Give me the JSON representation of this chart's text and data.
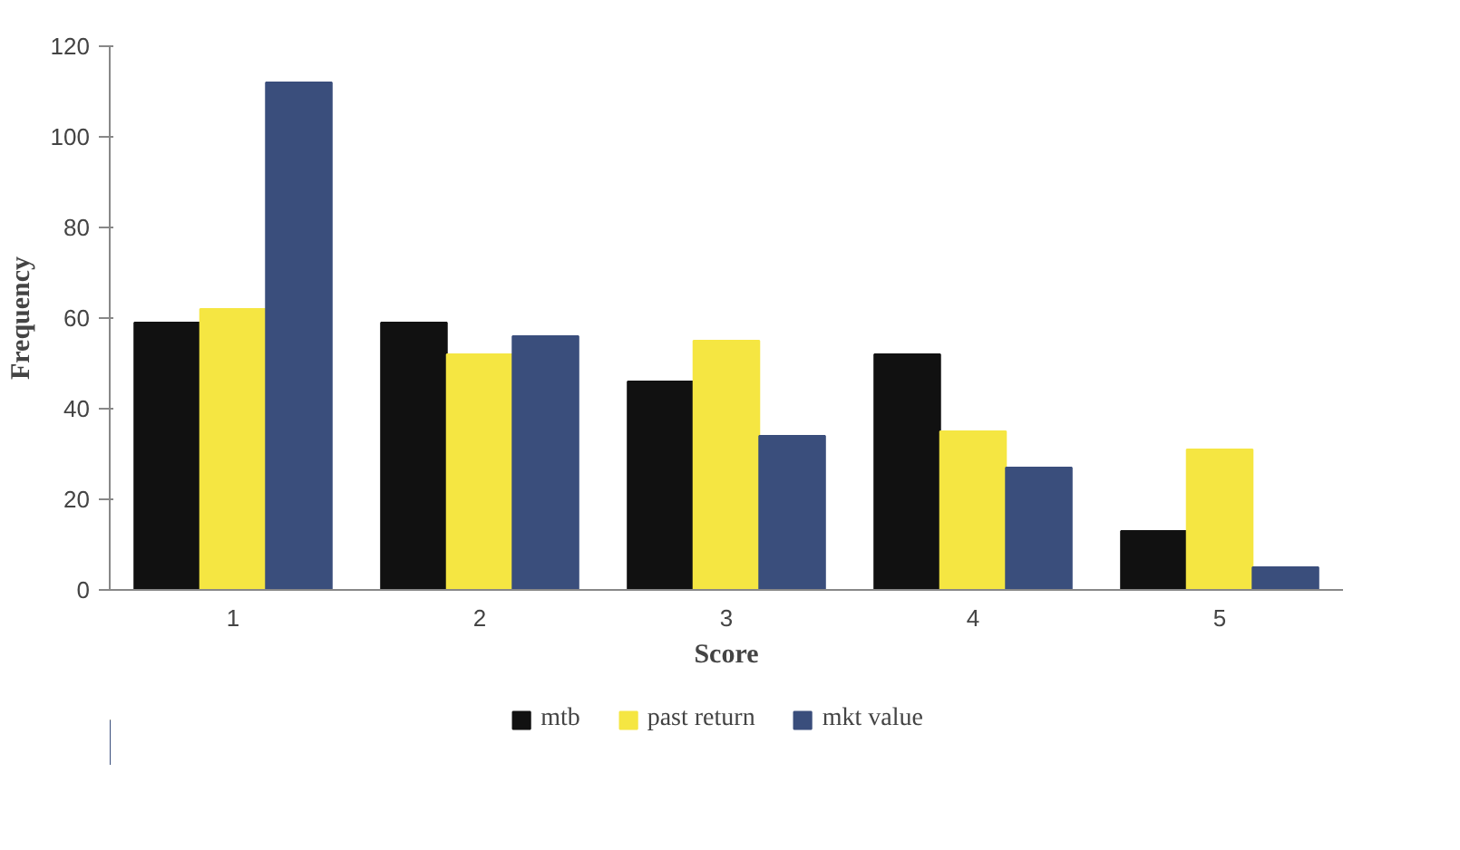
{
  "chart_data": {
    "type": "bar",
    "xlabel": "Score",
    "ylabel": "Frequency",
    "categories": [
      "1",
      "2",
      "3",
      "4",
      "5"
    ],
    "series": [
      {
        "name": "mtb",
        "color": "#111111",
        "values": [
          59,
          59,
          46,
          52,
          13
        ]
      },
      {
        "name": "past return",
        "color": "#f5e642",
        "values": [
          62,
          52,
          55,
          35,
          31
        ]
      },
      {
        "name": "mkt value",
        "color": "#3a4e7c",
        "values": [
          112,
          56,
          34,
          27,
          5
        ]
      }
    ],
    "ylim": [
      0,
      120
    ],
    "yticks": [
      0,
      20,
      40,
      60,
      80,
      100,
      120
    ],
    "grid": false,
    "legend": "bottom"
  }
}
